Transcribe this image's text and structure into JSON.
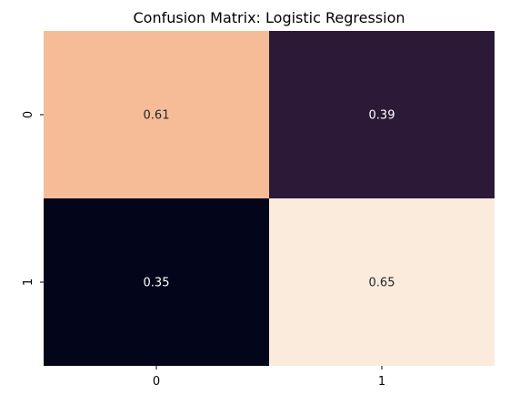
{
  "chart_data": {
    "type": "heatmap",
    "title": "Confusion Matrix: Logistic Regression",
    "x_categories": [
      "0",
      "1"
    ],
    "y_categories": [
      "0",
      "1"
    ],
    "values": [
      [
        0.61,
        0.39
      ],
      [
        0.35,
        0.65
      ]
    ],
    "value_labels": [
      [
        "0.61",
        "0.39"
      ],
      [
        "0.35",
        "0.65"
      ]
    ],
    "xlabel": "",
    "ylabel": "",
    "colorbar": false,
    "grid": false,
    "cell_colors": [
      [
        "#f6bc98",
        "#2c1837"
      ],
      [
        "#03051a",
        "#faebdd"
      ]
    ],
    "label_color": "#ffffff",
    "label_color_light_cells": "#262626"
  }
}
